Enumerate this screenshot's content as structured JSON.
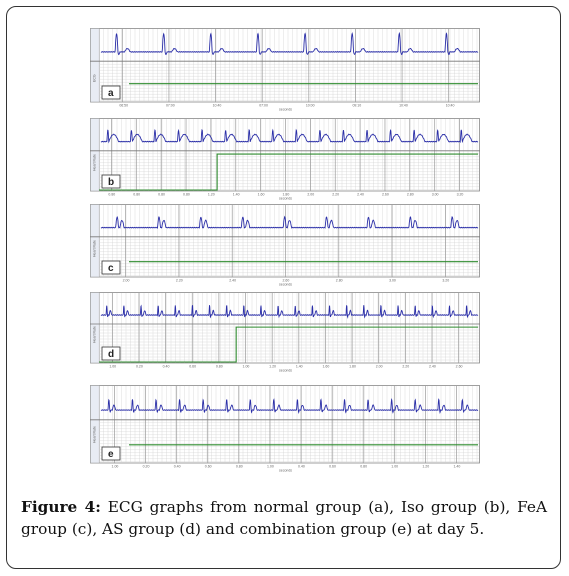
{
  "figure": {
    "caption_label": "Figure 4:",
    "caption_text": " ECG graphs from normal group (a), Iso group (b), FeA group (c), AS group (d) and combination group (e) at day 5."
  },
  "panels": [
    {
      "id": "a",
      "label": "a",
      "beats": 8,
      "peak_style": "tall",
      "ticks": [
        "06:50",
        "07:00",
        "10:40",
        "07:00",
        "10:00",
        "09:10",
        "10:40",
        "10:40"
      ],
      "axis_title": "seconds",
      "side_title": "ECG"
    },
    {
      "id": "b",
      "label": "b",
      "beats": 16,
      "peak_style": "broad",
      "ticks": [
        "0.80",
        "0.80",
        "0.80",
        "0.80",
        "1.20",
        "1.40",
        "1.60",
        "1.80",
        "2.00",
        "2.20",
        "2.40",
        "2.60",
        "2.80",
        "3.00",
        "3.20"
      ],
      "axis_title": "seconds",
      "side_title": "Heart Rate"
    },
    {
      "id": "c",
      "label": "c",
      "beats": 9,
      "peak_style": "double",
      "ticks": [
        "2.00",
        "2.20",
        "2.40",
        "2.60",
        "2.80",
        "3.00",
        "3.20"
      ],
      "axis_title": "seconds",
      "side_title": "Heart Rate"
    },
    {
      "id": "d",
      "label": "d",
      "beats": 22,
      "peak_style": "small",
      "ticks": [
        "1.00",
        "0.20",
        "0.40",
        "0.60",
        "0.80",
        "1.00",
        "1.20",
        "1.40",
        "1.60",
        "1.80",
        "2.00",
        "2.20",
        "2.40",
        "2.60"
      ],
      "axis_title": "seconds",
      "side_title": "Heart Rate"
    },
    {
      "id": "e",
      "label": "e",
      "beats": 16,
      "peak_style": "small",
      "ticks": [
        "1.00",
        "0.20",
        "0.40",
        "0.60",
        "0.80",
        "1.00",
        "0.40",
        "0.60",
        "0.80",
        "1.00",
        "1.20",
        "1.40"
      ],
      "axis_title": "seconds",
      "side_title": "Heart Rate"
    }
  ],
  "colors": {
    "trace": "#2b2fa8",
    "green": "#2e8b2e",
    "grid": "#cfcfcf",
    "grid_major": "#9a9a9a"
  }
}
